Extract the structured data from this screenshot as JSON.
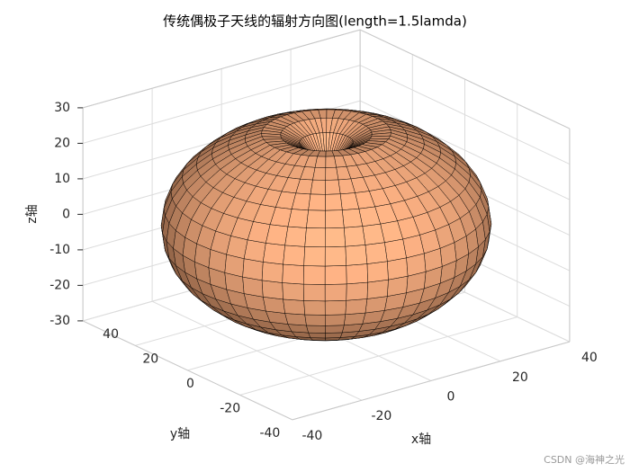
{
  "chart_data": {
    "type": "surface_of_revolution",
    "title": "传统偶极子天线的辐射方向图(length=1.5lamda)",
    "xlabel": "x轴",
    "ylabel": "y轴",
    "zlabel": "z轴",
    "xlim": [
      -40,
      40
    ],
    "ylim": [
      -40,
      40
    ],
    "zlim": [
      -30,
      30
    ],
    "xticks": [
      -40,
      -20,
      0,
      20,
      40
    ],
    "yticks": [
      -40,
      -20,
      0,
      20,
      40
    ],
    "zticks": [
      -30,
      -20,
      -10,
      0,
      10,
      20,
      30
    ],
    "grid": true,
    "color": "#f4a676",
    "edge_color": "#000000",
    "theta": [
      0,
      7.5,
      15,
      22.5,
      30,
      37.5,
      45,
      52.5,
      60,
      67.5,
      75,
      82.5,
      90,
      97.5,
      105,
      112.5,
      120,
      127.5,
      135,
      142.5,
      150,
      157.5,
      165,
      172.5,
      180
    ],
    "r": [
      14,
      18,
      24,
      27.5,
      29.8,
      30.7,
      31.9,
      33.2,
      34.5,
      35.9,
      37,
      37.7,
      38,
      37.7,
      37,
      35.9,
      34.5,
      33.2,
      31.9,
      30.7,
      29.8,
      27.5,
      24,
      18,
      14
    ],
    "watermark": "CSDN @海神之光"
  }
}
